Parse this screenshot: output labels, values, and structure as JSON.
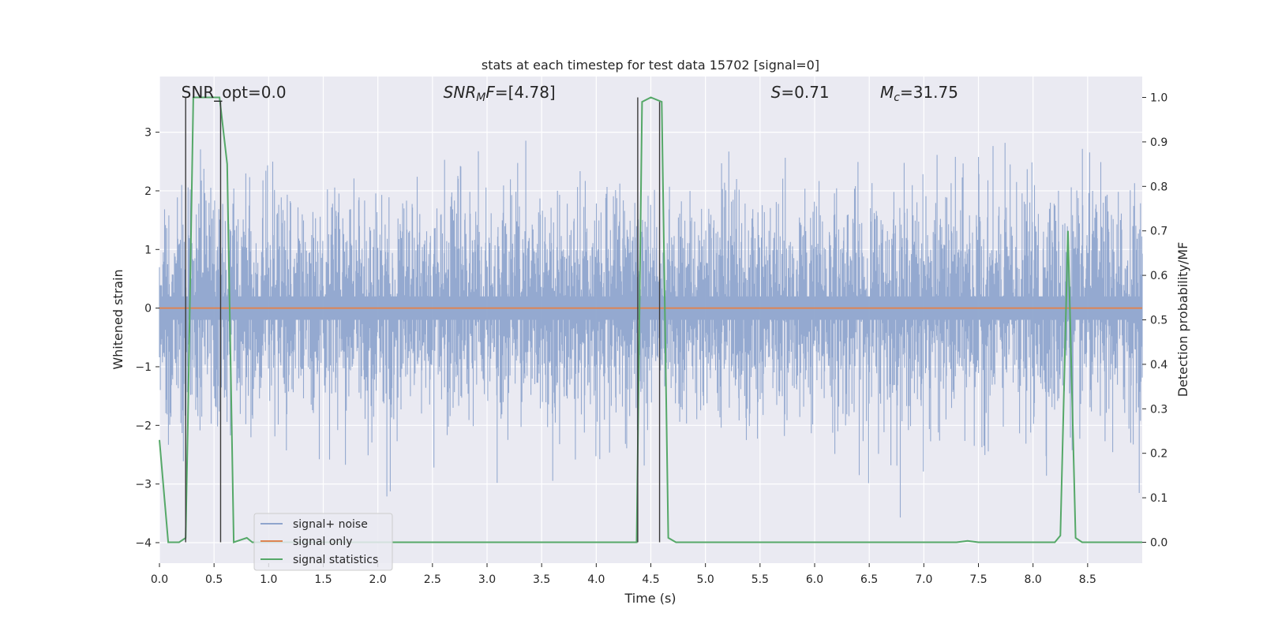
{
  "chart_data": {
    "type": "line",
    "title": "stats at each timestep for test data 15702 [signal=0]",
    "xlabel": "Time (s)",
    "ylabel": "Whitened strain",
    "y2label": "Detection probability/MF",
    "xlim": [
      0,
      9.0
    ],
    "ylim": [
      -4.35,
      3.95
    ],
    "y2lim": [
      -0.047,
      1.047
    ],
    "x_ticks": [
      "0.0",
      "0.5",
      "1.0",
      "1.5",
      "2.0",
      "2.5",
      "3.0",
      "3.5",
      "4.0",
      "4.5",
      "5.0",
      "5.5",
      "6.0",
      "6.5",
      "7.0",
      "7.5",
      "8.0",
      "8.5"
    ],
    "x_tick_values": [
      0,
      0.5,
      1.0,
      1.5,
      2.0,
      2.5,
      3.0,
      3.5,
      4.0,
      4.5,
      5.0,
      5.5,
      6.0,
      6.5,
      7.0,
      7.5,
      8.0,
      8.5
    ],
    "y_ticks": [
      "−4",
      "−3",
      "−2",
      "−1",
      "0",
      "1",
      "2",
      "3"
    ],
    "y_tick_values": [
      -4,
      -3,
      -2,
      -1,
      0,
      1,
      2,
      3
    ],
    "y2_ticks": [
      "0.0",
      "0.1",
      "0.2",
      "0.3",
      "0.4",
      "0.5",
      "0.6",
      "0.7",
      "0.8",
      "0.9",
      "1.0"
    ],
    "y2_tick_values": [
      0,
      0.1,
      0.2,
      0.3,
      0.4,
      0.5,
      0.6,
      0.7,
      0.8,
      0.9,
      1.0
    ],
    "grid": true,
    "legend_position": "bottom-left",
    "annotations": [
      {
        "label": "SNR_opt=0.0",
        "x": 0.2
      },
      {
        "label": "SNR_MF=[4.78]",
        "x": 2.6
      },
      {
        "label": "S=0.71",
        "x": 5.6
      },
      {
        "label": "M_c=31.75",
        "x": 6.6
      }
    ],
    "series": [
      {
        "name": "signal+ noise",
        "color": "#8fa5cd",
        "kind": "noise",
        "amplitude_typical": 1.3,
        "amplitude_max": 3.6
      },
      {
        "name": "signal only",
        "color": "#dd8452",
        "kind": "line",
        "x": [
          0,
          9.0
        ],
        "y": [
          0,
          0
        ]
      },
      {
        "name": "signal statistics",
        "color": "#55a868",
        "kind": "line",
        "axis": "right",
        "x": [
          0.0,
          0.08,
          0.18,
          0.24,
          0.26,
          0.31,
          0.55,
          0.62,
          0.68,
          0.8,
          0.85,
          1.0,
          4.37,
          4.42,
          4.5,
          4.6,
          4.66,
          4.73,
          4.95,
          5.0,
          7.3,
          7.4,
          7.5,
          8.2,
          8.25,
          8.32,
          8.39,
          8.45,
          9.0
        ],
        "y": [
          0.23,
          0.0,
          0.0,
          0.01,
          0.27,
          1.0,
          1.0,
          0.85,
          0.0,
          0.01,
          0.0,
          0.0,
          0.0,
          0.99,
          1.0,
          0.99,
          0.01,
          0.0,
          0.0,
          0.0,
          0.0,
          0.003,
          0.0,
          0.0,
          0.015,
          0.7,
          0.01,
          0.0,
          0.0
        ]
      }
    ],
    "vertical_markers": [
      {
        "x": 0.24,
        "y_top": 1.0
      },
      {
        "x": 0.56,
        "y_top": 0.99
      },
      {
        "x": 4.38,
        "y_top": 1.0
      },
      {
        "x": 4.58,
        "y_top": 0.99
      }
    ]
  }
}
